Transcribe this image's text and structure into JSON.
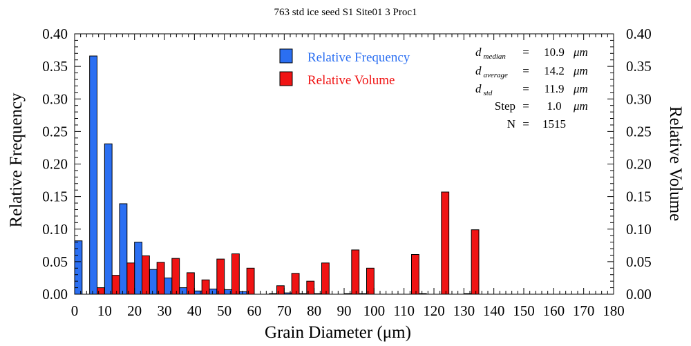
{
  "chart_data": {
    "type": "bar",
    "title": "763 std ice seed S1 Site01 3 Proc1",
    "xlabel": "Grain Diameter (μm)",
    "ylabel_left": "Relative Frequency",
    "ylabel_right": "Relative Volume",
    "xlim": [
      0,
      180
    ],
    "ylim": [
      0,
      0.4
    ],
    "x_ticks": [
      "0",
      "10",
      "20",
      "30",
      "40",
      "50",
      "60",
      "70",
      "80",
      "90",
      "100",
      "110",
      "120",
      "130",
      "140",
      "150",
      "160",
      "170",
      "180"
    ],
    "y_ticks": [
      "0.00",
      "0.05",
      "0.10",
      "0.15",
      "0.20",
      "0.25",
      "0.30",
      "0.35",
      "0.40"
    ],
    "bin_width": 5,
    "bin_starts": [
      0,
      5,
      10,
      15,
      20,
      25,
      30,
      35,
      40,
      45,
      50,
      55,
      60,
      65,
      70,
      75,
      80,
      85,
      90,
      95,
      100,
      105,
      110,
      115,
      120,
      125,
      130
    ],
    "series": [
      {
        "name": "Relative Frequency",
        "color": "#2b6ff2",
        "values": [
          0.082,
          0.366,
          0.231,
          0.139,
          0.08,
          0.038,
          0.025,
          0.01,
          0.005,
          0.008,
          0.007,
          0.004,
          0.0,
          0.001,
          0.002,
          0.001,
          0.001,
          0.0,
          0.001,
          0.001,
          0.0,
          0.0,
          0.0,
          0.001,
          0.0,
          0.0,
          0.001
        ]
      },
      {
        "name": "Relative Volume",
        "color": "#f01414",
        "values": [
          0.0,
          0.01,
          0.029,
          0.048,
          0.059,
          0.049,
          0.055,
          0.033,
          0.022,
          0.054,
          0.062,
          0.04,
          0.0,
          0.013,
          0.032,
          0.02,
          0.048,
          0.0,
          0.068,
          0.04,
          0.0,
          0.0,
          0.061,
          0.0,
          0.157,
          0.0,
          0.099
        ]
      }
    ],
    "legend_position": "top-center",
    "grid": false
  },
  "stats": [
    {
      "sym": "d",
      "sub": "median",
      "label": "",
      "value": "10.9",
      "unit": "μm"
    },
    {
      "sym": "d",
      "sub": "average",
      "label": "",
      "value": "14.2",
      "unit": "μm"
    },
    {
      "sym": "d",
      "sub": "std",
      "label": "",
      "value": "11.9",
      "unit": "μm"
    },
    {
      "sym": "",
      "sub": "",
      "label": "Step",
      "value": "1.0",
      "unit": "μm"
    },
    {
      "sym": "",
      "sub": "",
      "label": "N",
      "value": "1515",
      "unit": ""
    }
  ]
}
